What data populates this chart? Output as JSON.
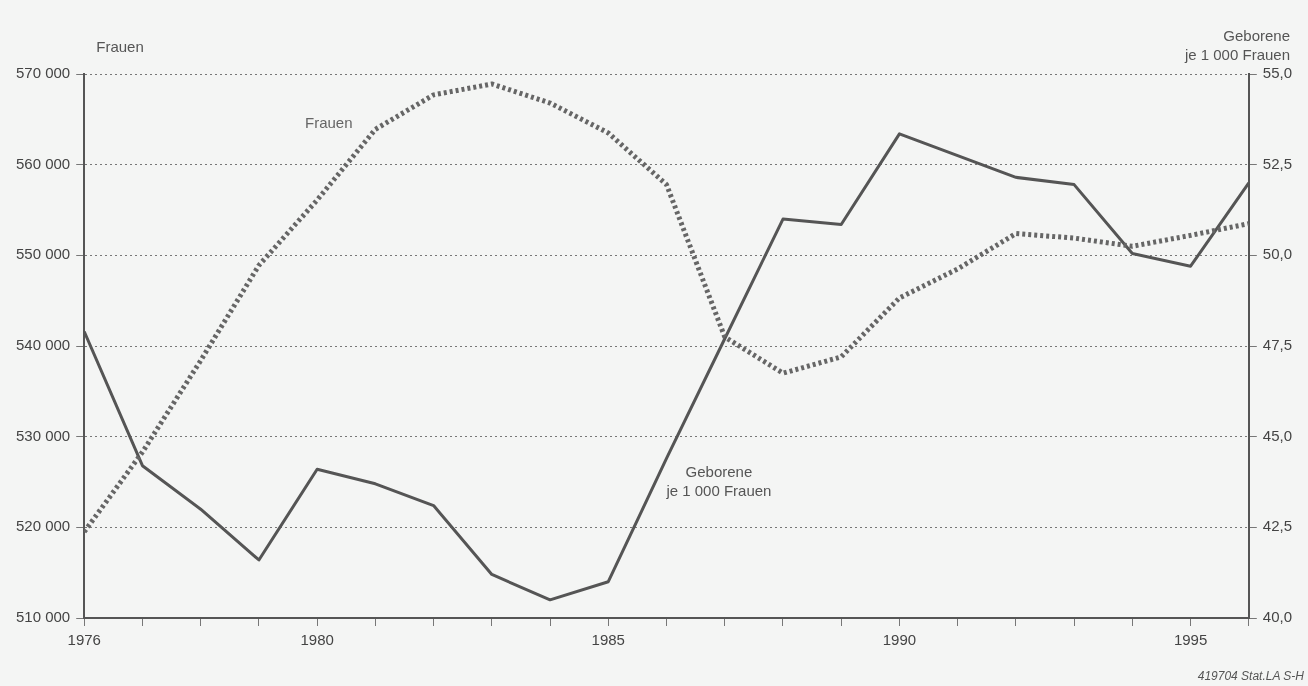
{
  "chart_data": {
    "type": "line",
    "ylabel": "Frauen",
    "y2label": "Geborene\nje 1 000 Frauen",
    "x": [
      1976,
      1977,
      1978,
      1979,
      1980,
      1981,
      1982,
      1983,
      1984,
      1985,
      1986,
      1987,
      1988,
      1989,
      1990,
      1991,
      1992,
      1993,
      1994,
      1995,
      1996
    ],
    "series": [
      {
        "name": "Frauen",
        "color": "#666666",
        "line_style": "dotted",
        "values": [
          519500,
          528300,
          538400,
          548900,
          556100,
          563900,
          567700,
          568900,
          566800,
          563500,
          557800,
          541000,
          537000,
          538800,
          545300,
          548500,
          552400,
          551900,
          551000,
          552200,
          553500
        ]
      },
      {
        "name": "Geborene\nje 1 000 Frauen",
        "color": "#555555",
        "line_style": "solid",
        "axis": "y2",
        "values": [
          47.9,
          44.2,
          43.0,
          41.6,
          44.1,
          43.7,
          43.1,
          41.2,
          40.5,
          41.0,
          44.4,
          47.7,
          51.0,
          50.85,
          53.35,
          52.75,
          52.15,
          51.95,
          50.05,
          49.7,
          52.0
        ]
      }
    ],
    "xlim": [
      1976,
      1996
    ],
    "xticks": [
      1976,
      {
        "value": 1977,
        "label": null
      },
      {
        "value": 1978,
        "label": null
      },
      {
        "value": 1979,
        "label": null
      },
      1980,
      {
        "value": 1981,
        "label": null
      },
      {
        "value": 1982,
        "label": null
      },
      {
        "value": 1983,
        "label": null
      },
      {
        "value": 1984,
        "label": null
      },
      1985,
      {
        "value": 1986,
        "label": null
      },
      {
        "value": 1987,
        "label": null
      },
      {
        "value": 1988,
        "label": null
      },
      {
        "value": 1989,
        "label": null
      },
      1990,
      {
        "value": 1991,
        "label": null
      },
      {
        "value": 1992,
        "label": null
      },
      {
        "value": 1993,
        "label": null
      },
      {
        "value": 1994,
        "label": null
      },
      1995,
      {
        "value": 1996,
        "label": null
      }
    ],
    "ylim": [
      510000,
      570000
    ],
    "yticks": [
      {
        "value": 510000,
        "label": "510 000"
      },
      {
        "value": 520000,
        "label": "520 000"
      },
      {
        "value": 530000,
        "label": "530 000"
      },
      {
        "value": 540000,
        "label": "540 000"
      },
      {
        "value": 550000,
        "label": "550 000"
      },
      {
        "value": 560000,
        "label": "560 000"
      },
      {
        "value": 570000,
        "label": "570 000"
      }
    ],
    "y2lim": [
      40,
      55
    ],
    "y2ticks": [
      {
        "value": 40,
        "label": "40,0"
      },
      {
        "value": 42.5,
        "label": "42,5"
      },
      {
        "value": 45,
        "label": "45,0"
      },
      {
        "value": 47.5,
        "label": "47,5"
      },
      {
        "value": 50,
        "label": "50,0"
      },
      {
        "value": 52.5,
        "label": "52,5"
      },
      {
        "value": 55,
        "label": "55,0"
      }
    ],
    "grid": "y",
    "legend": false,
    "marker": "none",
    "annotations": [
      "419704 Stat.LA S-H"
    ]
  }
}
